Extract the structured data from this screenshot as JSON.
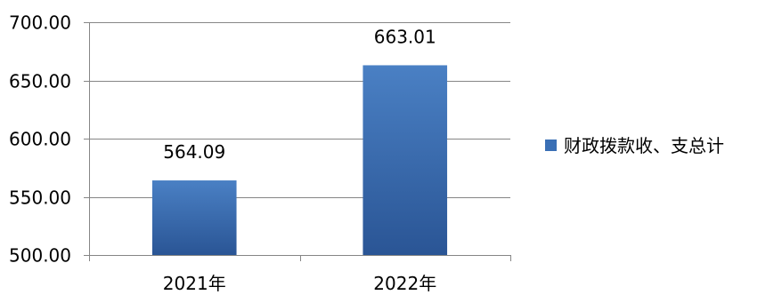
{
  "chart_data": {
    "type": "bar",
    "categories": [
      "2021年",
      "2022年"
    ],
    "series": [
      {
        "name": "财政拨款收、支总计",
        "values": [
          564.09,
          663.01
        ]
      }
    ],
    "data_labels": [
      "564.09",
      "663.01"
    ],
    "y_ticks": [
      "500.00",
      "550.00",
      "600.00",
      "650.00",
      "700.00"
    ],
    "ylim": [
      500,
      700
    ],
    "grid": true,
    "legend_position": "right",
    "bar_color": "#3a6fb5"
  }
}
